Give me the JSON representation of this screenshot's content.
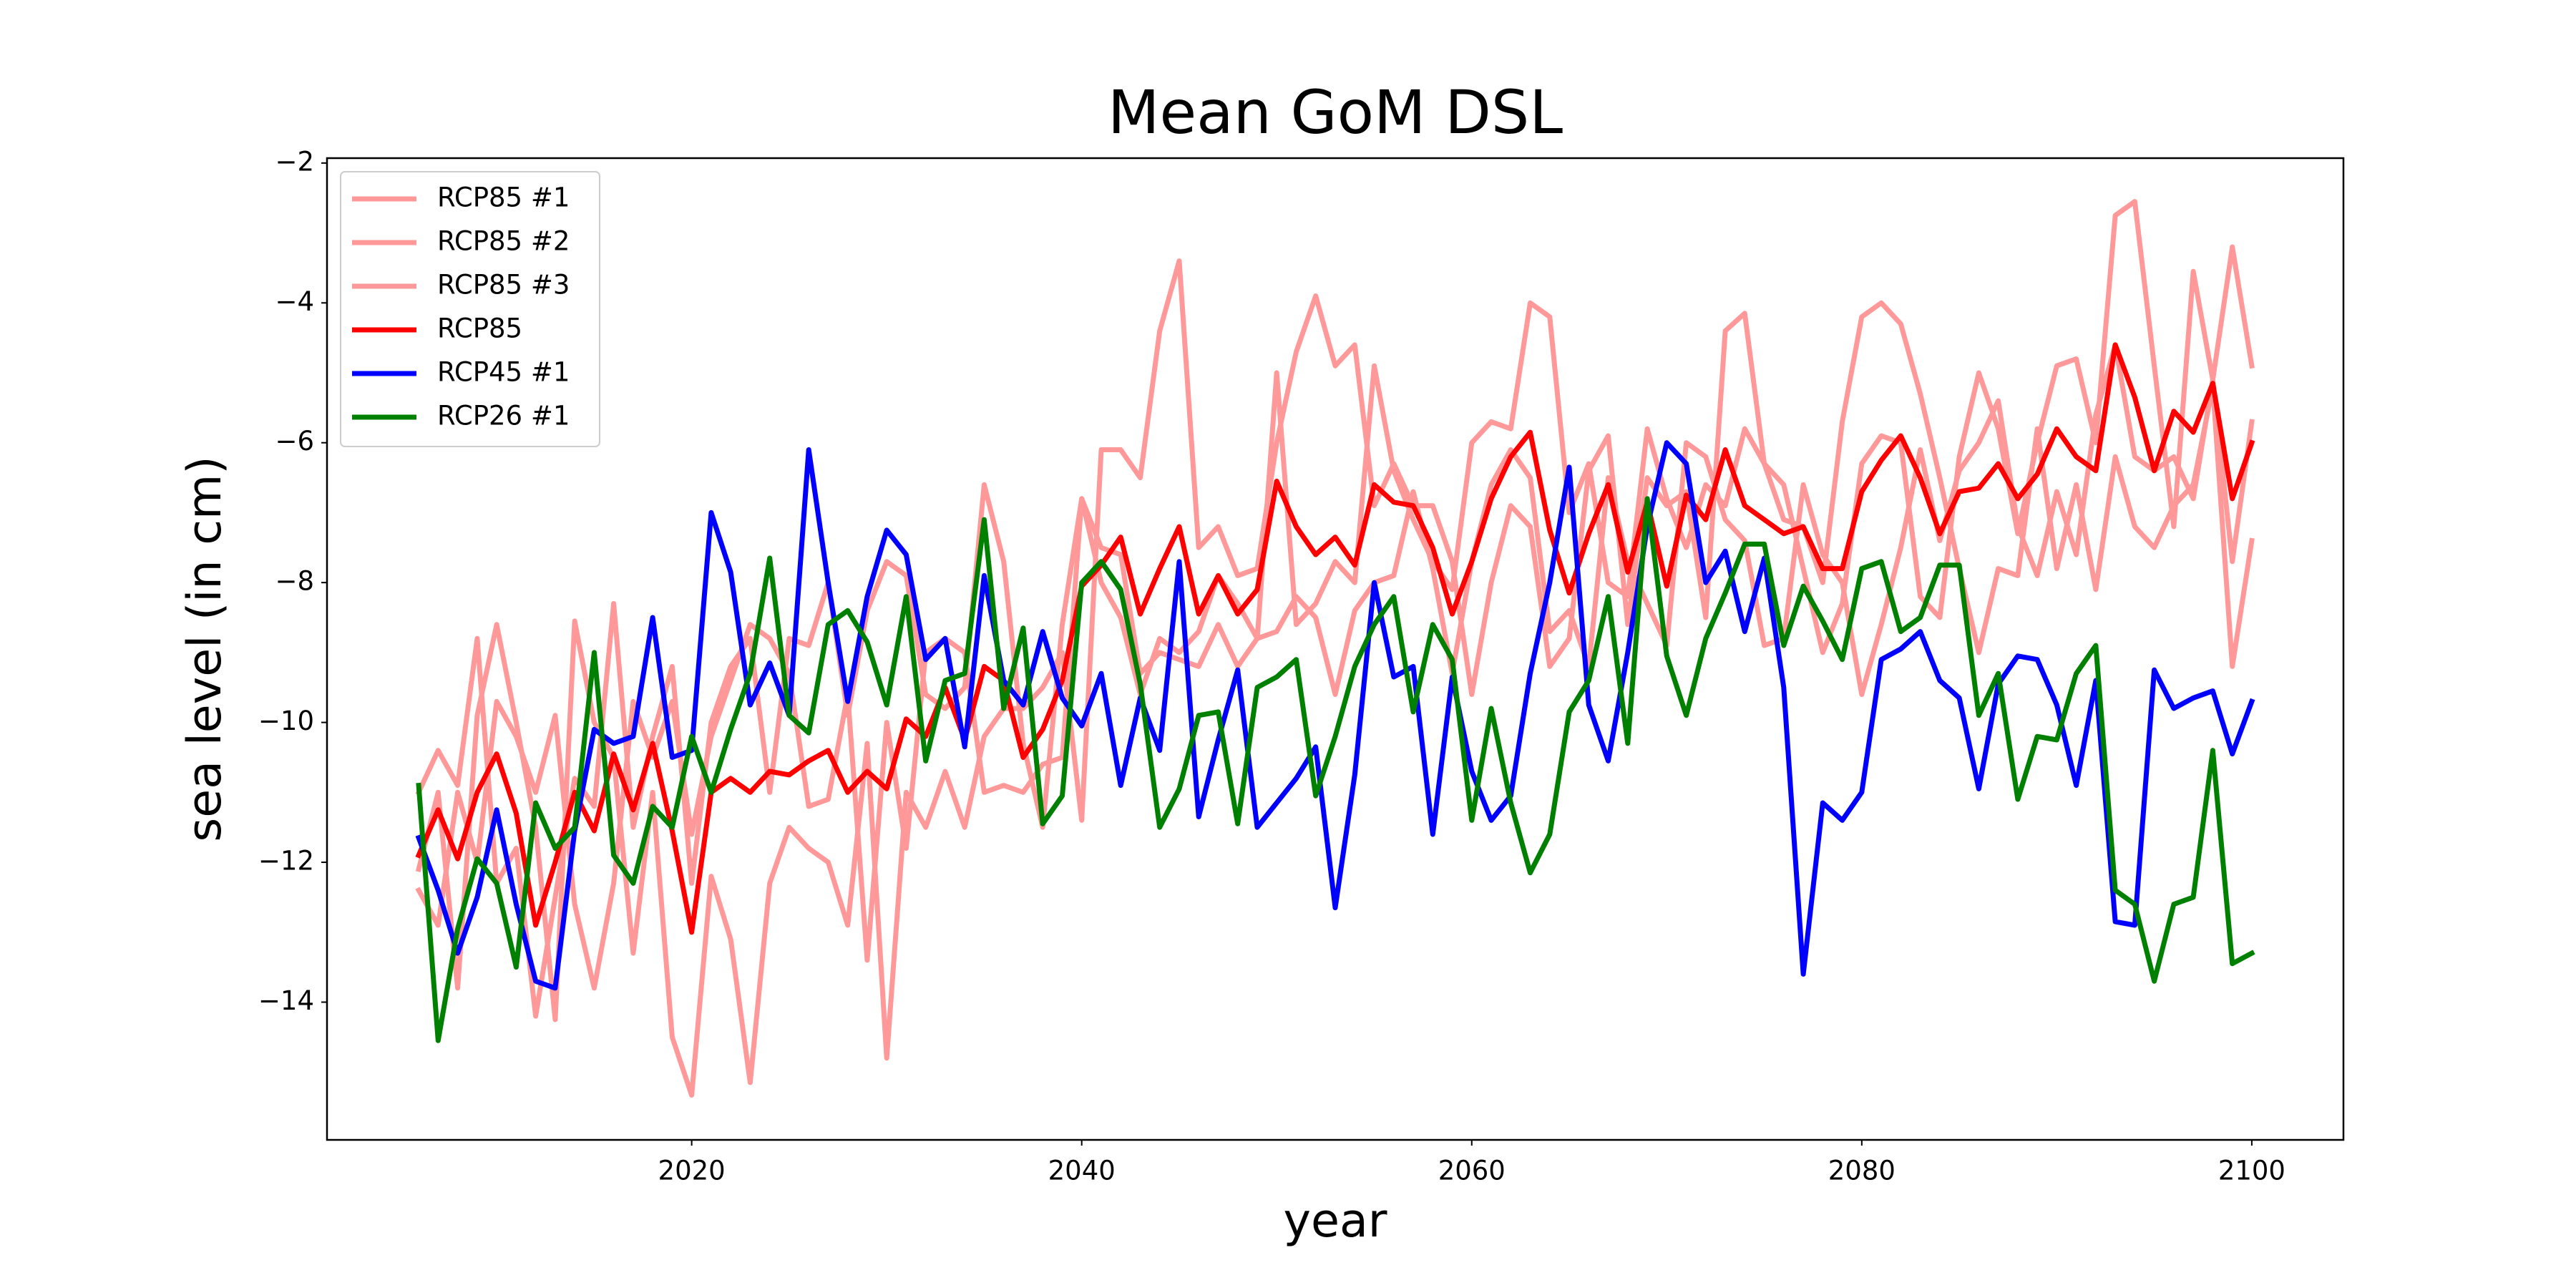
{
  "chart_data": {
    "type": "line",
    "title": "Mean GoM DSL",
    "xlabel": "year",
    "ylabel": "sea level (in cm)",
    "x": [
      2006,
      2007,
      2008,
      2009,
      2010,
      2011,
      2012,
      2013,
      2014,
      2015,
      2016,
      2017,
      2018,
      2019,
      2020,
      2021,
      2022,
      2023,
      2024,
      2025,
      2026,
      2027,
      2028,
      2029,
      2030,
      2031,
      2032,
      2033,
      2034,
      2035,
      2036,
      2037,
      2038,
      2039,
      2040,
      2041,
      2042,
      2043,
      2044,
      2045,
      2046,
      2047,
      2048,
      2049,
      2050,
      2051,
      2052,
      2053,
      2054,
      2055,
      2056,
      2057,
      2058,
      2059,
      2060,
      2061,
      2062,
      2063,
      2064,
      2065,
      2066,
      2067,
      2068,
      2069,
      2070,
      2071,
      2072,
      2073,
      2074,
      2075,
      2076,
      2077,
      2078,
      2079,
      2080,
      2081,
      2082,
      2083,
      2084,
      2085,
      2086,
      2087,
      2088,
      2089,
      2090,
      2091,
      2092,
      2093,
      2094,
      2095,
      2096,
      2097,
      2098,
      2099,
      2100
    ],
    "series": [
      {
        "name": "RCP85 #1",
        "color": "#ff9999",
        "values": [
          -11.0,
          -10.4,
          -10.9,
          -8.8,
          -12.3,
          -11.8,
          -14.2,
          -12.5,
          -10.8,
          -11.2,
          -8.3,
          -11.5,
          -10.2,
          -9.2,
          -12.3,
          -10.0,
          -9.2,
          -8.8,
          -11.0,
          -8.8,
          -8.9,
          -8.0,
          -9.9,
          -8.4,
          -7.7,
          -7.9,
          -9.6,
          -9.8,
          -9.5,
          -6.6,
          -7.7,
          -10.3,
          -11.5,
          -8.6,
          -6.8,
          -7.5,
          -7.6,
          -9.3,
          -9.0,
          -9.1,
          -9.2,
          -8.6,
          -9.2,
          -8.8,
          -5.0,
          -8.6,
          -8.3,
          -7.7,
          -8.0,
          -4.9,
          -6.4,
          -7.1,
          -7.7,
          -8.1,
          -6.0,
          -5.7,
          -5.8,
          -4.0,
          -4.2,
          -7.0,
          -6.3,
          -8.0,
          -8.2,
          -5.8,
          -6.8,
          -7.5,
          -6.6,
          -6.9,
          -5.8,
          -6.3,
          -6.6,
          -7.8,
          -9.0,
          -8.3,
          -6.3,
          -5.9,
          -6.0,
          -8.2,
          -8.5,
          -6.2,
          -5.0,
          -5.8,
          -7.3,
          -6.0,
          -4.9,
          -4.8,
          -6.0,
          -2.75,
          -2.55,
          -4.9,
          -7.2,
          -3.55,
          -5.1,
          -3.2,
          -4.9
        ]
      },
      {
        "name": "RCP85 #2",
        "color": "#ff9999",
        "values": [
          -12.1,
          -11.0,
          -13.8,
          -9.9,
          -8.6,
          -10.0,
          -11.5,
          -14.25,
          -8.55,
          -10.0,
          -10.5,
          -13.3,
          -11.0,
          -14.5,
          -15.33,
          -12.2,
          -13.1,
          -15.15,
          -12.3,
          -11.5,
          -11.8,
          -12.0,
          -12.9,
          -10.3,
          -14.8,
          -11.0,
          -11.5,
          -10.7,
          -11.5,
          -10.2,
          -9.8,
          -9.8,
          -9.5,
          -9.0,
          -11.4,
          -6.1,
          -6.1,
          -6.5,
          -4.4,
          -3.4,
          -7.5,
          -7.2,
          -7.9,
          -7.8,
          -6.0,
          -4.7,
          -3.9,
          -4.9,
          -4.6,
          -6.9,
          -6.3,
          -6.9,
          -6.9,
          -7.7,
          -9.6,
          -8.0,
          -6.9,
          -7.2,
          -9.2,
          -8.8,
          -6.4,
          -5.9,
          -8.6,
          -6.5,
          -6.9,
          -6.7,
          -8.5,
          -4.4,
          -4.15,
          -6.3,
          -7.1,
          -7.2,
          -8.0,
          -5.7,
          -4.2,
          -4.0,
          -4.3,
          -5.3,
          -6.5,
          -7.8,
          -9.0,
          -7.8,
          -7.9,
          -5.8,
          -7.8,
          -6.6,
          -8.1,
          -6.2,
          -7.2,
          -7.5,
          -6.9,
          -6.6,
          -5.2,
          -9.2,
          -7.4
        ]
      },
      {
        "name": "RCP85 #3",
        "color": "#ff9999",
        "values": [
          -12.4,
          -12.9,
          -11.0,
          -12.0,
          -9.7,
          -10.2,
          -11.0,
          -9.9,
          -12.6,
          -13.8,
          -12.3,
          -9.7,
          -10.5,
          -9.7,
          -11.6,
          -10.2,
          -9.4,
          -8.6,
          -8.8,
          -9.3,
          -11.2,
          -11.1,
          -9.6,
          -13.4,
          -10.0,
          -11.8,
          -9.0,
          -8.8,
          -9.0,
          -11.0,
          -10.9,
          -11.0,
          -10.6,
          -10.5,
          -6.8,
          -8.0,
          -8.5,
          -9.6,
          -8.8,
          -9.0,
          -8.7,
          -7.9,
          -8.3,
          -8.8,
          -8.7,
          -8.2,
          -8.5,
          -9.6,
          -8.4,
          -8.0,
          -7.9,
          -6.7,
          -7.8,
          -9.3,
          -7.7,
          -6.6,
          -6.1,
          -6.5,
          -8.7,
          -8.4,
          -9.2,
          -6.5,
          -7.7,
          -8.3,
          -8.9,
          -6.0,
          -6.2,
          -7.1,
          -7.4,
          -8.9,
          -8.8,
          -6.6,
          -7.6,
          -8.0,
          -9.6,
          -8.6,
          -7.5,
          -6.1,
          -7.4,
          -6.4,
          -6.0,
          -5.4,
          -7.2,
          -7.9,
          -6.7,
          -7.6,
          -5.6,
          -4.6,
          -6.2,
          -6.4,
          -6.2,
          -6.8,
          -5.1,
          -7.7,
          -5.7
        ]
      },
      {
        "name": "RCP85",
        "color": "#ff0000",
        "values": [
          -11.9,
          -11.25,
          -11.95,
          -11.0,
          -10.45,
          -11.3,
          -12.9,
          -12.0,
          -11.0,
          -11.55,
          -10.45,
          -11.25,
          -10.3,
          -11.55,
          -13.0,
          -11.0,
          -10.8,
          -11.0,
          -10.7,
          -10.75,
          -10.55,
          -10.4,
          -11.0,
          -10.7,
          -10.95,
          -9.95,
          -10.2,
          -9.5,
          -10.25,
          -9.2,
          -9.4,
          -10.5,
          -10.1,
          -9.4,
          -8.05,
          -7.75,
          -7.35,
          -8.45,
          -7.8,
          -7.2,
          -8.45,
          -7.9,
          -8.45,
          -8.1,
          -6.55,
          -7.2,
          -7.6,
          -7.35,
          -7.75,
          -6.6,
          -6.85,
          -6.9,
          -7.5,
          -8.45,
          -7.7,
          -6.8,
          -6.2,
          -5.85,
          -7.25,
          -8.15,
          -7.3,
          -6.6,
          -7.85,
          -6.85,
          -8.05,
          -6.75,
          -7.1,
          -6.1,
          -6.9,
          -7.1,
          -7.3,
          -7.2,
          -7.8,
          -7.8,
          -6.7,
          -6.25,
          -5.9,
          -6.5,
          -7.3,
          -6.7,
          -6.65,
          -6.3,
          -6.8,
          -6.45,
          -5.8,
          -6.2,
          -6.4,
          -4.6,
          -5.35,
          -6.4,
          -5.55,
          -5.85,
          -5.15,
          -6.8,
          -6.0
        ]
      },
      {
        "name": "RCP45 #1",
        "color": "#0000ff",
        "values": [
          -11.65,
          -12.4,
          -13.3,
          -12.5,
          -11.25,
          -12.6,
          -13.7,
          -13.8,
          -11.55,
          -10.1,
          -10.3,
          -10.2,
          -8.5,
          -10.5,
          -10.4,
          -7.0,
          -7.85,
          -9.75,
          -9.15,
          -9.9,
          -6.1,
          -8.0,
          -9.7,
          -8.2,
          -7.25,
          -7.6,
          -9.1,
          -8.8,
          -10.35,
          -7.9,
          -9.4,
          -9.75,
          -8.7,
          -9.65,
          -10.05,
          -9.3,
          -10.9,
          -9.65,
          -10.4,
          -7.7,
          -11.35,
          -10.25,
          -9.25,
          -11.5,
          -11.15,
          -10.8,
          -10.35,
          -12.65,
          -10.75,
          -8.0,
          -9.35,
          -9.2,
          -11.6,
          -9.35,
          -10.7,
          -11.4,
          -11.05,
          -9.3,
          -8.0,
          -6.35,
          -9.75,
          -10.55,
          -9.0,
          -7.2,
          -6.0,
          -6.3,
          -8.0,
          -7.55,
          -8.7,
          -7.65,
          -9.5,
          -13.6,
          -11.15,
          -11.4,
          -11.0,
          -9.1,
          -8.95,
          -8.7,
          -9.4,
          -9.65,
          -10.95,
          -9.45,
          -9.05,
          -9.1,
          -9.75,
          -10.9,
          -9.4,
          -12.85,
          -12.9,
          -9.25,
          -9.8,
          -9.65,
          -9.55,
          -10.45,
          -9.7
        ]
      },
      {
        "name": "RCP26 #1",
        "color": "#008000",
        "values": [
          -10.9,
          -14.55,
          -12.95,
          -11.95,
          -12.3,
          -13.5,
          -11.15,
          -11.8,
          -11.5,
          -9.0,
          -11.9,
          -12.3,
          -11.2,
          -11.5,
          -10.2,
          -11.0,
          -10.1,
          -9.3,
          -7.65,
          -9.9,
          -10.15,
          -8.6,
          -8.4,
          -8.85,
          -9.75,
          -8.2,
          -10.55,
          -9.4,
          -9.3,
          -7.1,
          -9.8,
          -8.65,
          -11.45,
          -11.05,
          -8.0,
          -7.7,
          -8.1,
          -9.45,
          -11.5,
          -10.95,
          -9.9,
          -9.85,
          -11.45,
          -9.5,
          -9.35,
          -9.1,
          -11.05,
          -10.2,
          -9.2,
          -8.6,
          -8.2,
          -9.85,
          -8.6,
          -9.1,
          -11.4,
          -9.8,
          -11.15,
          -12.15,
          -11.6,
          -9.85,
          -9.4,
          -8.2,
          -10.3,
          -6.8,
          -9.05,
          -9.9,
          -8.8,
          -8.15,
          -7.45,
          -7.45,
          -8.9,
          -8.05,
          -8.55,
          -9.1,
          -7.8,
          -7.7,
          -8.7,
          -8.5,
          -7.75,
          -7.75,
          -9.9,
          -9.3,
          -11.1,
          -10.2,
          -10.25,
          -9.3,
          -8.9,
          -12.4,
          -12.6,
          -13.7,
          -12.6,
          -12.5,
          -10.4,
          -13.45,
          -13.3
        ]
      }
    ],
    "xlim": [
      2001.3,
      2104.7
    ],
    "ylim": [
      -15.97,
      -1.93
    ],
    "xticks": [
      2020,
      2040,
      2060,
      2080,
      2100
    ],
    "yticks": [
      {
        "value": -14,
        "label": "−14"
      },
      {
        "value": -12,
        "label": "−12"
      },
      {
        "value": -10,
        "label": "−10"
      },
      {
        "value": -8,
        "label": "−8"
      },
      {
        "value": -6,
        "label": "−6"
      },
      {
        "value": -4,
        "label": "−4"
      },
      {
        "value": -2,
        "label": "−2"
      }
    ],
    "grid": false,
    "legend": "upper left"
  }
}
